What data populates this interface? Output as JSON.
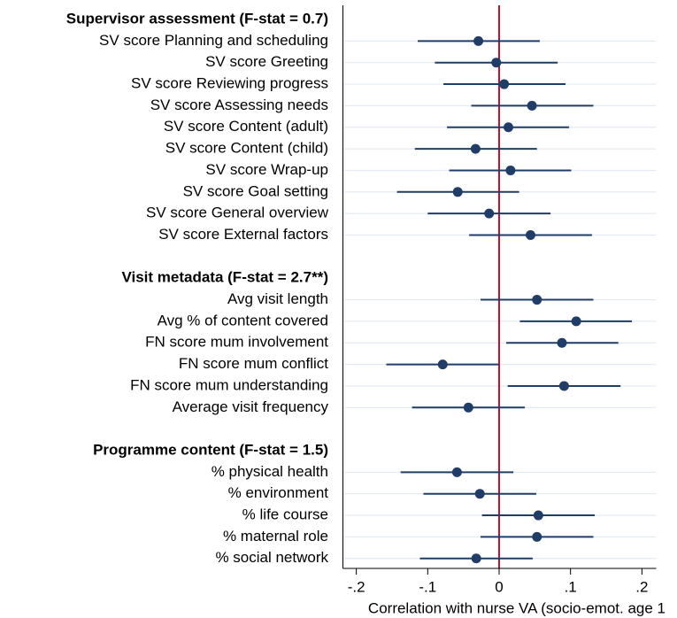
{
  "chart_data": {
    "type": "coefplot",
    "x_label": "Correlation with nurse VA (socio-emot. age 1",
    "xlim": [
      -0.22,
      0.22
    ],
    "xticks": [
      {
        "value": -0.2,
        "label": "-.2"
      },
      {
        "value": -0.1,
        "label": "-.1"
      },
      0,
      {
        "value": 0.1,
        "label": ".1"
      },
      {
        "value": 0.2,
        "label": ".2"
      }
    ],
    "reference_line": 0,
    "reference_color": "#c8102e",
    "color": "#1f3d66",
    "grid": true,
    "groups": [
      {
        "title": "Supervisor assessment (F-stat = 0.7)",
        "categories": [
          "SV score Planning and scheduling",
          "SV score Greeting",
          "SV score Reviewing progress",
          "SV score Assessing needs",
          "SV score Content (adult)",
          "SV score Content (child)",
          "SV score Wrap-up",
          "SV score Goal setting",
          "SV score General overview",
          "SV score External factors"
        ],
        "estimates": [
          -0.029,
          -0.004,
          0.007,
          0.046,
          0.013,
          -0.033,
          0.016,
          -0.058,
          -0.014,
          0.044
        ],
        "ci_low": [
          -0.114,
          -0.09,
          -0.078,
          -0.039,
          -0.073,
          -0.118,
          -0.07,
          -0.143,
          -0.1,
          -0.042
        ],
        "ci_high": [
          0.057,
          0.082,
          0.093,
          0.132,
          0.098,
          0.053,
          0.101,
          0.028,
          0.072,
          0.13
        ]
      },
      {
        "title": "Visit metadata (F-stat = 2.7**)",
        "categories": [
          "Avg visit length",
          "Avg % of content covered",
          "FN score mum involvement",
          "FN score mum conflict",
          "FN score mum understanding",
          "Average visit frequency"
        ],
        "estimates": [
          0.053,
          0.108,
          0.088,
          -0.079,
          0.091,
          -0.043
        ],
        "ci_low": [
          -0.026,
          0.029,
          0.01,
          -0.158,
          0.012,
          -0.122
        ],
        "ci_high": [
          0.132,
          0.186,
          0.167,
          0,
          0.17,
          0.036
        ]
      },
      {
        "title": "Programme content (F-stat = 1.5)",
        "categories": [
          "% physical health",
          "% environment",
          "% life course",
          "% maternal role",
          "% social network"
        ],
        "estimates": [
          -0.059,
          -0.027,
          0.055,
          0.053,
          -0.032
        ],
        "ci_low": [
          -0.138,
          -0.106,
          -0.024,
          -0.026,
          -0.111
        ],
        "ci_high": [
          0.02,
          0.052,
          0.134,
          0.132,
          0.047
        ]
      }
    ]
  }
}
